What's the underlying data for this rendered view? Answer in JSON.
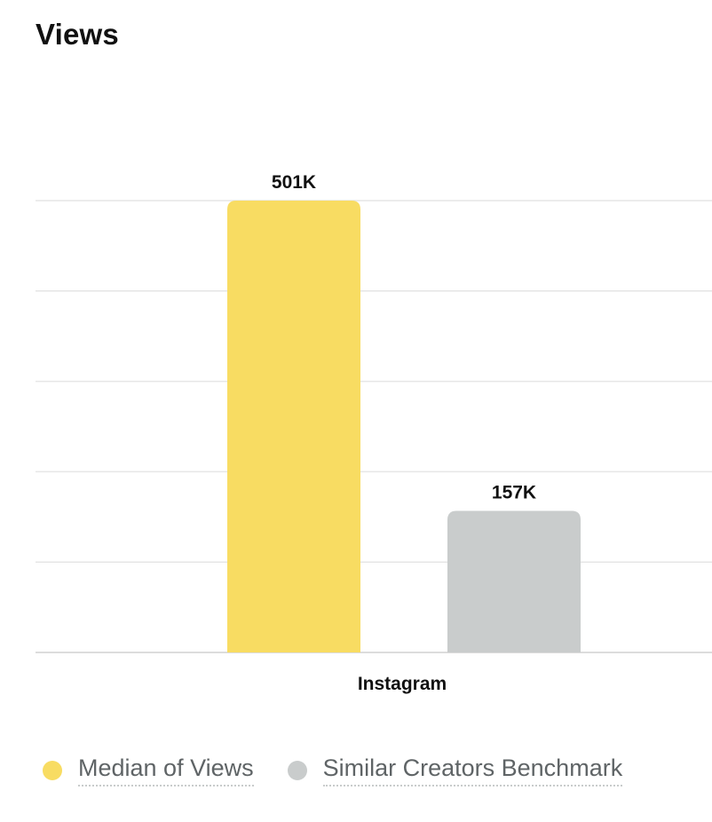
{
  "chart_data": {
    "type": "bar",
    "title": "Views",
    "categories": [
      "Instagram"
    ],
    "series": [
      {
        "name": "Median of Views",
        "values": [
          501000
        ],
        "label": "501K",
        "color": "#f8dc62"
      },
      {
        "name": "Similar Creators Benchmark",
        "values": [
          157000
        ],
        "label": "157K",
        "color": "#c9cccc"
      }
    ],
    "ylim": [
      0,
      501000
    ],
    "grid": true,
    "legend": "bottom-left"
  }
}
